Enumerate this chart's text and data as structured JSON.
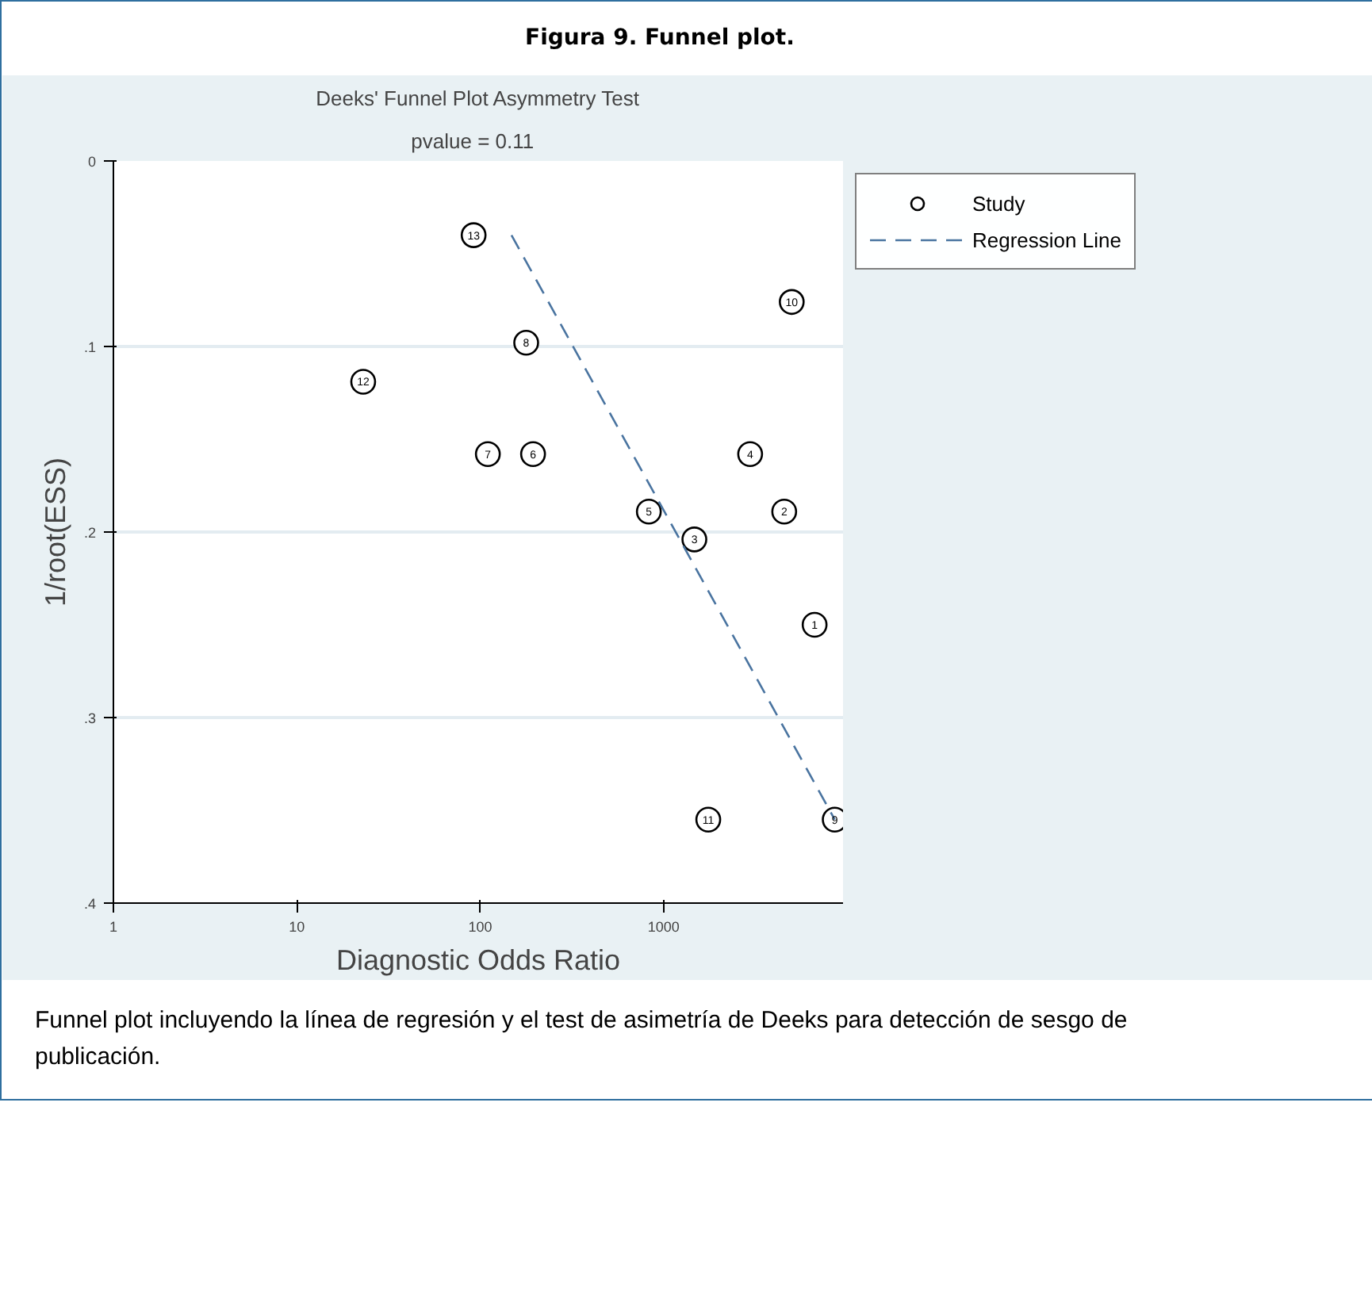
{
  "chart_data": {
    "type": "scatter",
    "title": "Figura 9. Funnel plot.",
    "subtitle": "Deeks' Funnel Plot Asymmetry Test",
    "annotations": [
      "pvalue =   0.11",
      "Funnel plot incluyendo la línea de regresión y el test de asimetría de Deeks para detección de sesgo de publicación.",
      {
        "text": "1",
        "x": 6650,
        "y": 0.25
      },
      {
        "text": "2",
        "x": 4540,
        "y": 0.189
      },
      {
        "text": "3",
        "x": 1470,
        "y": 0.204
      },
      {
        "text": "4",
        "x": 2960,
        "y": 0.158
      },
      {
        "text": "5",
        "x": 830,
        "y": 0.189
      },
      {
        "text": "6",
        "x": 194,
        "y": 0.158
      },
      {
        "text": "7",
        "x": 110,
        "y": 0.158
      },
      {
        "text": "8",
        "x": 178,
        "y": 0.098
      },
      {
        "text": "9",
        "x": 8560,
        "y": 0.355
      },
      {
        "text": "10",
        "x": 4990,
        "y": 0.076
      },
      {
        "text": "11",
        "x": 1750,
        "y": 0.355
      },
      {
        "text": "12",
        "x": 23,
        "y": 0.119
      },
      {
        "text": "13",
        "x": 92,
        "y": 0.04
      }
    ],
    "xlabel": "Diagnostic Odds Ratio",
    "ylabel": "1/root(ESS)",
    "log": "x",
    "xlim": [
      1,
      9500
    ],
    "xticks": [
      1,
      10,
      100,
      1000
    ],
    "ylim": [
      0.4,
      0
    ],
    "yticks": [
      {
        "value": 0,
        "label": "0"
      },
      {
        "value": 0.1,
        "label": ".1"
      },
      {
        "value": 0.2,
        "label": ".2"
      },
      {
        "value": 0.3,
        "label": ".3"
      },
      {
        "value": 0.4,
        "label": ".4"
      }
    ],
    "grid": "y",
    "legend": "top right",
    "series": [
      {
        "name": "Study",
        "marker": "circle",
        "color": "#000000",
        "x": [
          6650,
          4540,
          1470,
          2960,
          830,
          194,
          110,
          178,
          8560,
          4990,
          1750,
          23,
          92
        ],
        "values": [
          0.25,
          0.189,
          0.204,
          0.158,
          0.189,
          0.158,
          0.158,
          0.098,
          0.355,
          0.076,
          0.355,
          0.119,
          0.04
        ]
      },
      {
        "name": "Regression Line",
        "type": "line",
        "line_style": "dashed",
        "color": "#4a74a0",
        "x": [
          148,
          8560
        ],
        "values": [
          0.04,
          0.355
        ]
      }
    ]
  }
}
